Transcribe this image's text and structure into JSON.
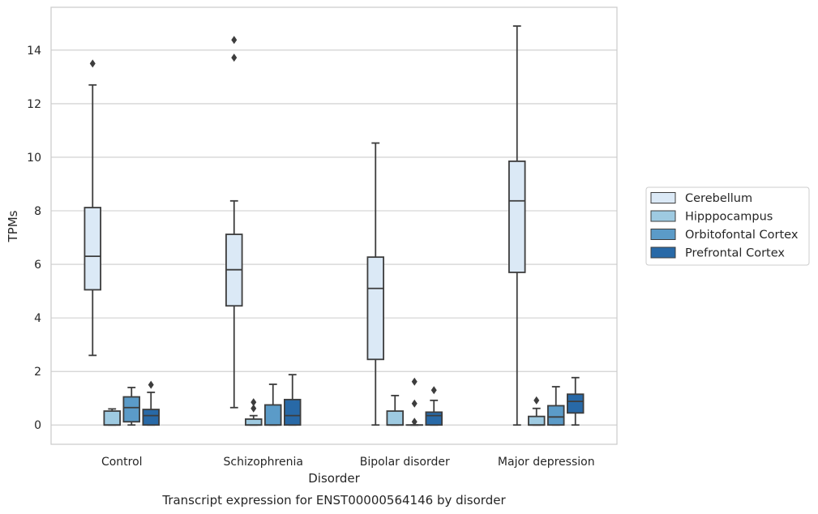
{
  "chart_data": {
    "type": "boxplot",
    "title": "Transcript expression for ENST00000564146 by disorder",
    "xlabel": "Disorder",
    "ylabel": "TPMs",
    "ylim": [
      -0.72,
      15.6
    ],
    "yticks": [
      0,
      2,
      4,
      6,
      8,
      10,
      12,
      14
    ],
    "grid": true,
    "legend_position": "right",
    "categories": [
      "Control",
      "Schizophrenia",
      "Bipolar disorder",
      "Major depression"
    ],
    "series": [
      {
        "name": "Cerebellum",
        "color": "#dbe9f6",
        "boxes": [
          {
            "whislo": 2.6,
            "q1": 5.05,
            "med": 6.3,
            "q3": 8.12,
            "whishi": 12.7,
            "fliers": [
              13.5
            ]
          },
          {
            "whislo": 0.65,
            "q1": 4.45,
            "med": 5.8,
            "q3": 7.12,
            "whishi": 8.37,
            "fliers": [
              13.72,
              14.38
            ]
          },
          {
            "whislo": 0.0,
            "q1": 2.45,
            "med": 5.1,
            "q3": 6.27,
            "whishi": 10.53,
            "fliers": []
          },
          {
            "whislo": 0.0,
            "q1": 5.7,
            "med": 8.37,
            "q3": 9.85,
            "whishi": 14.9,
            "fliers": []
          }
        ]
      },
      {
        "name": "Hipppocampus",
        "color": "#9ecae1",
        "boxes": [
          {
            "whislo": 0.0,
            "q1": 0.0,
            "med": 0.0,
            "q3": 0.52,
            "whishi": 0.6,
            "fliers": []
          },
          {
            "whislo": 0.0,
            "q1": 0.0,
            "med": 0.0,
            "q3": 0.22,
            "whishi": 0.35,
            "fliers": [
              0.62,
              0.85
            ]
          },
          {
            "whislo": 0.0,
            "q1": 0.0,
            "med": 0.0,
            "q3": 0.52,
            "whishi": 1.1,
            "fliers": []
          },
          {
            "whislo": 0.0,
            "q1": 0.0,
            "med": 0.0,
            "q3": 0.32,
            "whishi": 0.62,
            "fliers": [
              0.92
            ]
          }
        ]
      },
      {
        "name": "Orbitofontal Cortex",
        "color": "#5b9bc8",
        "boxes": [
          {
            "whislo": 0.0,
            "q1": 0.12,
            "med": 0.65,
            "q3": 1.05,
            "whishi": 1.4,
            "fliers": []
          },
          {
            "whislo": 0.0,
            "q1": 0.0,
            "med": 0.0,
            "q3": 0.75,
            "whishi": 1.52,
            "fliers": []
          },
          {
            "whislo": 0.0,
            "q1": 0.0,
            "med": 0.0,
            "q3": 0.0,
            "whishi": 0.0,
            "fliers": [
              0.12,
              0.8,
              1.62
            ]
          },
          {
            "whislo": 0.0,
            "q1": 0.0,
            "med": 0.3,
            "q3": 0.72,
            "whishi": 1.43,
            "fliers": []
          }
        ]
      },
      {
        "name": "Prefrontal Cortex",
        "color": "#2869a7",
        "boxes": [
          {
            "whislo": 0.0,
            "q1": 0.0,
            "med": 0.35,
            "q3": 0.58,
            "whishi": 1.22,
            "fliers": [
              1.5
            ]
          },
          {
            "whislo": 0.0,
            "q1": 0.0,
            "med": 0.35,
            "q3": 0.95,
            "whishi": 1.88,
            "fliers": []
          },
          {
            "whislo": 0.0,
            "q1": 0.0,
            "med": 0.35,
            "q3": 0.48,
            "whishi": 0.92,
            "fliers": [
              1.3
            ]
          },
          {
            "whislo": 0.0,
            "q1": 0.45,
            "med": 0.88,
            "q3": 1.15,
            "whishi": 1.77,
            "fliers": []
          }
        ]
      }
    ]
  }
}
